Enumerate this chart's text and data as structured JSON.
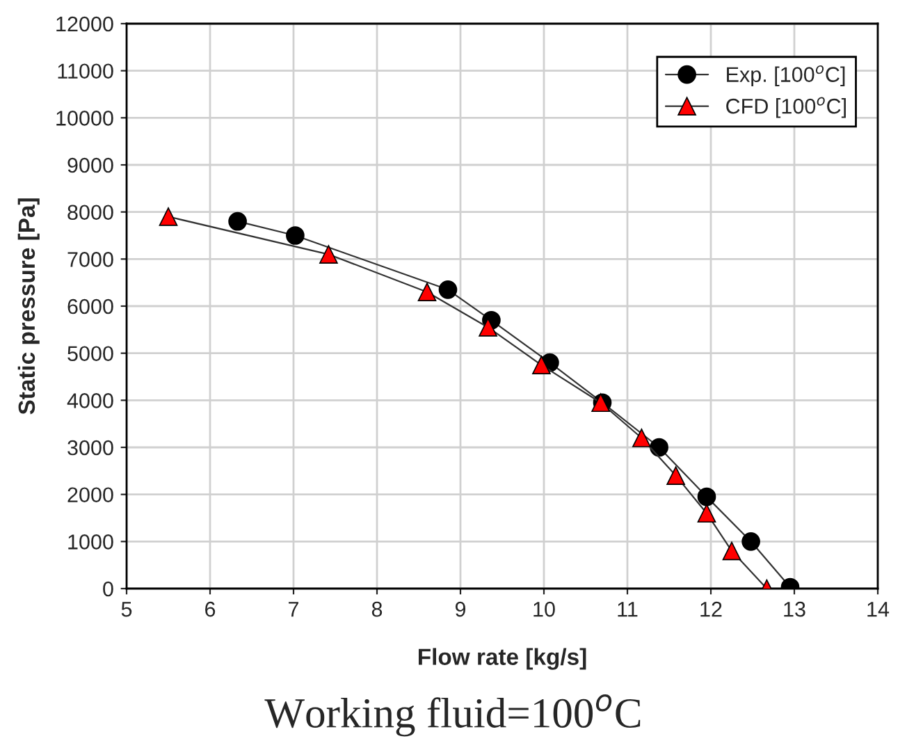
{
  "chart_data": {
    "type": "line",
    "xlabel": "Flow rate [kg/s]",
    "ylabel": "Static pressure [Pa]",
    "annotations": [
      "Working fluid=100$^{o}$C"
    ],
    "xlim": [
      5,
      14
    ],
    "xticks": [
      5,
      6,
      7,
      8,
      9,
      10,
      11,
      12,
      13,
      14
    ],
    "ylim": [
      0,
      12000
    ],
    "yticks": [
      0,
      1000,
      2000,
      3000,
      4000,
      5000,
      6000,
      7000,
      8000,
      9000,
      10000,
      11000,
      12000
    ],
    "grid": true,
    "legend": "top right",
    "line_style": "solid",
    "series": [
      {
        "name": "Exp. [100$^{o}$C]",
        "color": "#000000",
        "marker": "circle",
        "x": [
          6.33,
          7.02,
          8.85,
          9.37,
          10.07,
          10.7,
          11.38,
          11.95,
          12.48,
          12.95
        ],
        "values": [
          7800,
          7500,
          6350,
          5700,
          4800,
          3950,
          3000,
          1950,
          1000,
          30
        ]
      },
      {
        "name": "CFD [100$^{o}$C]",
        "color": "#ff0000",
        "marker": "triangle",
        "x": [
          5.5,
          7.42,
          8.6,
          9.33,
          9.97,
          10.68,
          11.17,
          11.58,
          11.95,
          12.25,
          12.67
        ],
        "values": [
          7900,
          7100,
          6300,
          5550,
          4750,
          3950,
          3200,
          2400,
          1600,
          800,
          0
        ]
      }
    ]
  }
}
